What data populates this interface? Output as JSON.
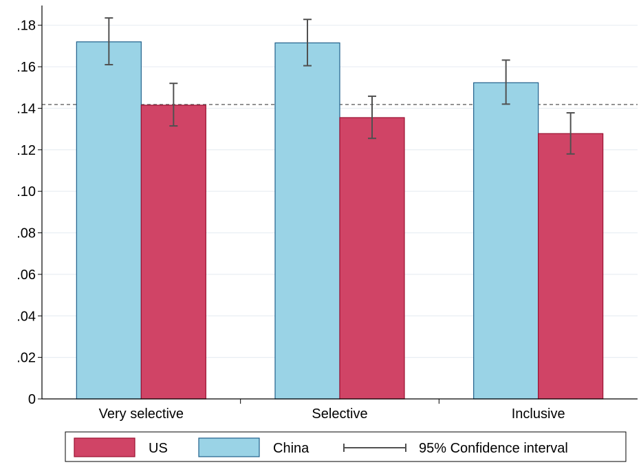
{
  "chart_data": {
    "type": "bar",
    "categories": [
      "Very selective",
      "Selective",
      "Inclusive"
    ],
    "series": [
      {
        "name": "China",
        "color": "#9ad3e6",
        "values": [
          0.172,
          0.1715,
          0.1523
        ],
        "ci_low": [
          0.161,
          0.1605,
          0.142
        ],
        "ci_high": [
          0.1835,
          0.1828,
          0.1632
        ]
      },
      {
        "name": "US",
        "color": "#d04466",
        "values": [
          0.1415,
          0.1355,
          0.1278
        ],
        "ci_low": [
          0.1315,
          0.1255,
          0.118
        ],
        "ci_high": [
          0.152,
          0.1458,
          0.1378
        ]
      }
    ],
    "yticks": [
      {
        "value": 0,
        "label": "0"
      },
      {
        "value": 0.02,
        "label": ".02"
      },
      {
        "value": 0.04,
        "label": ".04"
      },
      {
        "value": 0.06,
        "label": ".06"
      },
      {
        "value": 0.08,
        "label": ".08"
      },
      {
        "value": 0.1,
        "label": ".10"
      },
      {
        "value": 0.12,
        "label": ".12"
      },
      {
        "value": 0.14,
        "label": ".14"
      },
      {
        "value": 0.16,
        "label": ".16"
      },
      {
        "value": 0.18,
        "label": ".18"
      }
    ],
    "ylim": [
      0,
      0.1895
    ],
    "reference_line": 0.1418,
    "grid": true,
    "legend": {
      "placement": "bottom",
      "items": [
        {
          "label": "US",
          "kind": "bar",
          "color": "#d04466"
        },
        {
          "label": "China",
          "kind": "bar",
          "color": "#9ad3e6"
        },
        {
          "label": "95% Confidence interval",
          "kind": "ci"
        }
      ]
    }
  }
}
